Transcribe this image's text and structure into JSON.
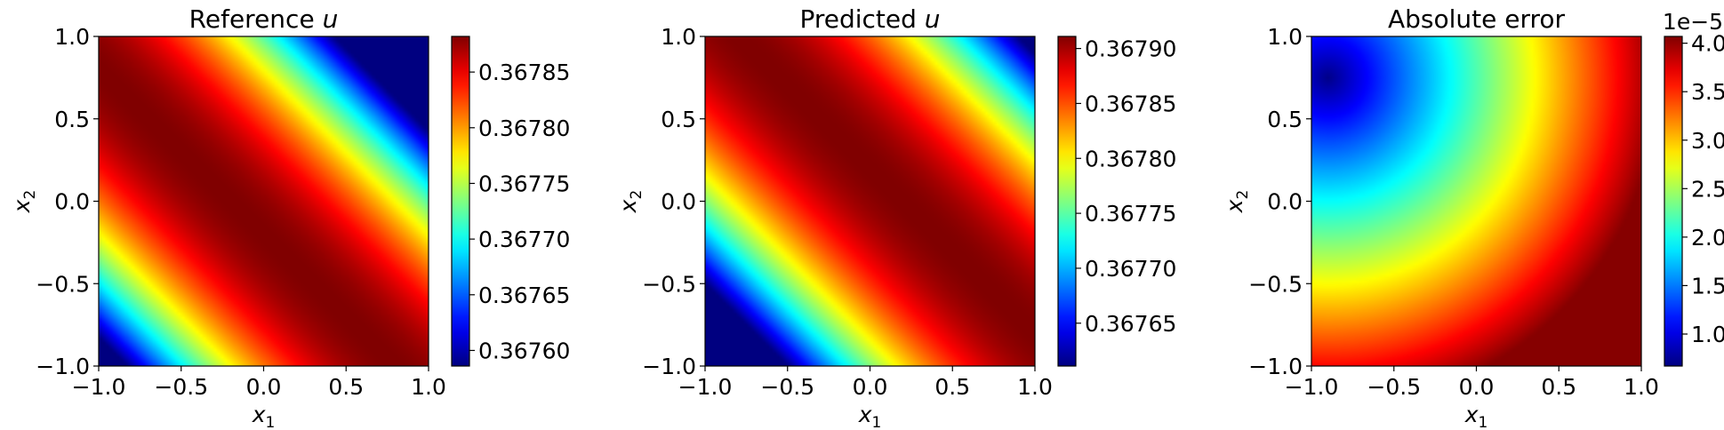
{
  "colormap": "jet",
  "chart_data": [
    {
      "type": "heatmap",
      "title_text": "Reference ",
      "title_var": "u",
      "xlabel_var": "x",
      "xlabel_sub": "1",
      "ylabel_var": "x",
      "ylabel_sub": "2",
      "xlim": [
        -1.0,
        1.0
      ],
      "ylim": [
        -1.0,
        1.0
      ],
      "xticks": [
        -1.0,
        -0.5,
        0.0,
        0.5,
        1.0
      ],
      "yticks": [
        -1.0,
        -0.5,
        0.0,
        0.5,
        1.0
      ],
      "xtick_labels": [
        "−1.0",
        "−0.5",
        "0.0",
        "0.5",
        "1.0"
      ],
      "ytick_labels": [
        "−1.0",
        "−0.5",
        "0.0",
        "0.5",
        "1.0"
      ],
      "colorbar": {
        "range": [
          0.367586,
          0.367882
        ],
        "ticks": [
          0.3676,
          0.36765,
          0.3677,
          0.36775,
          0.3678,
          0.36785
        ],
        "tick_labels": [
          "0.36760",
          "0.36765",
          "0.36770",
          "0.36775",
          "0.36780",
          "0.36785"
        ],
        "offset_label": ""
      },
      "pattern": {
        "kind": "diagonal-ridge",
        "center": [
          -0.1,
          -0.1
        ],
        "width": 1.15,
        "shape": 1.0,
        "mid_offset": 0.0
      }
    },
    {
      "type": "heatmap",
      "title_text": "Predicted ",
      "title_var": "u",
      "xlabel_var": "x",
      "xlabel_sub": "1",
      "ylabel_var": "x",
      "ylabel_sub": "2",
      "xlim": [
        -1.0,
        1.0
      ],
      "ylim": [
        -1.0,
        1.0
      ],
      "xticks": [
        -1.0,
        -0.5,
        0.0,
        0.5,
        1.0
      ],
      "yticks": [
        -1.0,
        -0.5,
        0.0,
        0.5,
        1.0
      ],
      "xtick_labels": [
        "−1.0",
        "−0.5",
        "0.0",
        "0.5",
        "1.0"
      ],
      "ytick_labels": [
        "−1.0",
        "−0.5",
        "0.0",
        "0.5",
        "1.0"
      ],
      "colorbar": {
        "range": [
          0.367611,
          0.367911
        ],
        "ticks": [
          0.36765,
          0.3677,
          0.36775,
          0.3678,
          0.36785,
          0.3679
        ],
        "tick_labels": [
          "0.36765",
          "0.36770",
          "0.36775",
          "0.36780",
          "0.36785",
          "0.36790"
        ],
        "offset_label": ""
      },
      "pattern": {
        "kind": "diagonal-ridge",
        "center": [
          0.1,
          0.1
        ],
        "width": 1.2,
        "shape": 1.0,
        "mid_offset": 0.0
      }
    },
    {
      "type": "heatmap",
      "title_text": "Absolute error",
      "title_var": "",
      "xlabel_var": "x",
      "xlabel_sub": "1",
      "ylabel_var": "x",
      "ylabel_sub": "2",
      "xlim": [
        -1.0,
        1.0
      ],
      "ylim": [
        -1.0,
        1.0
      ],
      "xticks": [
        -1.0,
        -0.5,
        0.0,
        0.5,
        1.0
      ],
      "yticks": [
        -1.0,
        -0.5,
        0.0,
        0.5,
        1.0
      ],
      "xtick_labels": [
        "−1.0",
        "−0.5",
        "0.0",
        "0.5",
        "1.0"
      ],
      "ytick_labels": [
        "−1.0",
        "−0.5",
        "0.0",
        "0.5",
        "1.0"
      ],
      "colorbar": {
        "range": [
          0.67,
          4.07
        ],
        "ticks": [
          1.0,
          1.5,
          2.0,
          2.5,
          3.0,
          3.5,
          4.0
        ],
        "tick_labels": [
          "1.0",
          "1.5",
          "2.0",
          "2.5",
          "3.0",
          "3.5",
          "4.0"
        ],
        "offset_label": "1e−5"
      },
      "pattern": {
        "kind": "radial-from-corner",
        "origin": [
          -0.9,
          0.75
        ],
        "radius_max": 2.0,
        "min": 0.7,
        "max": 4.05
      }
    }
  ]
}
